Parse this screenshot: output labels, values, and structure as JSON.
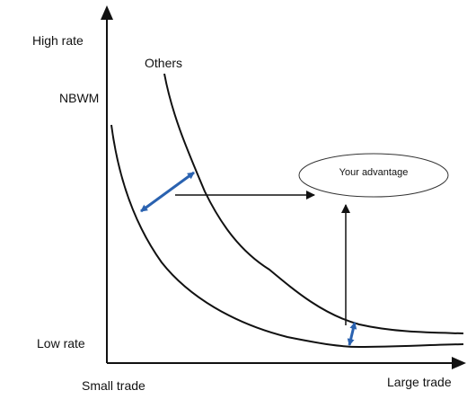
{
  "axes": {
    "y_high": "High rate",
    "y_nbwm": "NBWM",
    "y_low": "Low rate",
    "x_small": "Small trade",
    "x_large": "Large trade"
  },
  "curves": {
    "others_label": "Others"
  },
  "callout": {
    "advantage_label": "Your advantage"
  },
  "colors": {
    "line": "#111111",
    "accent_arrow": "#2a62b0"
  }
}
